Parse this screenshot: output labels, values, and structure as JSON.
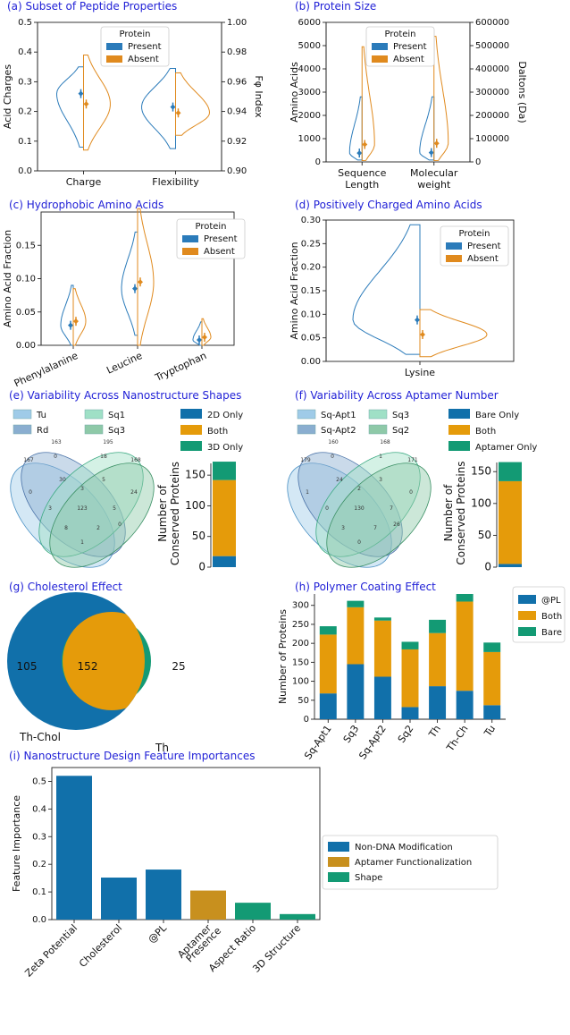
{
  "colors": {
    "present": "#2b7bba",
    "absent": "#e08a1e",
    "blue": "#1170aa",
    "orange": "#e59b0a",
    "green": "#139a74",
    "title": "#1f1fd6",
    "aptamer": "#c8901e"
  },
  "chart_data": [
    {
      "id": "a",
      "type": "violin",
      "title": "(a) Subset of Peptide Properties",
      "ylabel": "Acid Charges",
      "y2label": "Fφ Index",
      "categories": [
        "Charge",
        "Flexibility"
      ],
      "ylim": [
        0.0,
        0.5
      ],
      "yticks": [
        "0.0",
        "0.1",
        "0.2",
        "0.3",
        "0.4",
        "0.5"
      ],
      "y2lim": [
        0.9,
        1.0
      ],
      "y2ticks": [
        "0.90",
        "0.92",
        "0.94",
        "0.96",
        "0.98",
        "1.00"
      ],
      "legend": {
        "title": "Protein",
        "entries": [
          "Present",
          "Absent"
        ]
      },
      "series": [
        {
          "name": "Present",
          "category": "Charge",
          "axis": "left",
          "min": 0.08,
          "max": 0.35,
          "mean": 0.26
        },
        {
          "name": "Absent",
          "category": "Charge",
          "axis": "left",
          "min": 0.07,
          "max": 0.39,
          "mean": 0.225
        },
        {
          "name": "Present",
          "category": "Flexibility",
          "axis": "right",
          "min": 0.915,
          "max": 0.969,
          "mean": 0.943
        },
        {
          "name": "Absent",
          "category": "Flexibility",
          "axis": "right",
          "min": 0.924,
          "max": 0.966,
          "mean": 0.939
        }
      ]
    },
    {
      "id": "b",
      "type": "violin",
      "title": "(b) Protein Size",
      "ylabel": "Amino Acids",
      "y2label": "Daltons (Da)",
      "categories": [
        "Sequence Length",
        "Molecular weight"
      ],
      "category_lines": [
        [
          "Sequence",
          "Length"
        ],
        [
          "Molecular",
          "weight"
        ]
      ],
      "ylim": [
        0,
        6000
      ],
      "yticks": [
        "0",
        "1000",
        "2000",
        "3000",
        "4000",
        "5000",
        "6000"
      ],
      "y2lim": [
        0,
        600000
      ],
      "y2ticks": [
        "0",
        "100000",
        "200000",
        "300000",
        "400000",
        "500000",
        "600000"
      ],
      "legend": {
        "title": "Protein",
        "entries": [
          "Present",
          "Absent"
        ]
      },
      "series": [
        {
          "name": "Present",
          "category": "Sequence Length",
          "min": 80,
          "max": 2800,
          "mean": 380
        },
        {
          "name": "Absent",
          "category": "Sequence Length",
          "min": 60,
          "max": 4950,
          "mean": 750
        },
        {
          "name": "Present",
          "category": "Molecular weight",
          "min": 80,
          "max": 2800,
          "mean": 400
        },
        {
          "name": "Absent",
          "category": "Molecular weight",
          "min": 60,
          "max": 5400,
          "mean": 800
        }
      ]
    },
    {
      "id": "c",
      "type": "violin",
      "title": "(c) Hydrophobic Amino Acids",
      "ylabel": "Amino Acid Fraction",
      "categories": [
        "Phenylalanine",
        "Leucine",
        "Tryptophan"
      ],
      "ylim": [
        0.0,
        0.2
      ],
      "yticks": [
        "0.00",
        "0.05",
        "0.10",
        "0.15"
      ],
      "legend": {
        "title": "Protein",
        "entries": [
          "Present",
          "Absent"
        ]
      },
      "series": [
        {
          "name": "Present",
          "category": "Phenylalanine",
          "min": 0.0,
          "max": 0.09,
          "mean": 0.03
        },
        {
          "name": "Absent",
          "category": "Phenylalanine",
          "min": 0.0,
          "max": 0.085,
          "mean": 0.036
        },
        {
          "name": "Present",
          "category": "Leucine",
          "min": 0.015,
          "max": 0.17,
          "mean": 0.085
        },
        {
          "name": "Absent",
          "category": "Leucine",
          "min": 0.0,
          "max": 0.205,
          "mean": 0.095
        },
        {
          "name": "Present",
          "category": "Tryptophan",
          "min": 0.0,
          "max": 0.035,
          "mean": 0.008
        },
        {
          "name": "Absent",
          "category": "Tryptophan",
          "min": 0.0,
          "max": 0.04,
          "mean": 0.012
        }
      ]
    },
    {
      "id": "d",
      "type": "violin",
      "title": "(d) Positively Charged Amino Acids",
      "ylabel": "Amino Acid Fraction",
      "categories": [
        "Lysine"
      ],
      "ylim": [
        0.0,
        0.3
      ],
      "yticks": [
        "0.00",
        "0.05",
        "0.10",
        "0.15",
        "0.20",
        "0.25",
        "0.30"
      ],
      "legend": {
        "title": "Protein",
        "entries": [
          "Present",
          "Absent"
        ]
      },
      "series": [
        {
          "name": "Present",
          "category": "Lysine",
          "min": 0.015,
          "max": 0.29,
          "mean": 0.088
        },
        {
          "name": "Absent",
          "category": "Lysine",
          "min": 0.01,
          "max": 0.11,
          "mean": 0.057
        }
      ]
    },
    {
      "id": "e",
      "type": "venn4+stacked-bar",
      "title": "(e) Variability Across Nanostructure Shapes",
      "sets": [
        "Tu",
        "Rd",
        "Sq1",
        "Sq3"
      ],
      "set_totals": [
        "167",
        "163",
        "195",
        "168"
      ],
      "region_counts": [
        "0",
        "30",
        "3",
        "18",
        "5",
        "24",
        "0",
        "3",
        "123",
        "5",
        "0",
        "8",
        "2",
        "1"
      ],
      "bar_legend": [
        "2D Only",
        "Both",
        "3D Only"
      ],
      "ylabel_lines": [
        "Number of",
        "Conserved Proteins"
      ],
      "ylim": [
        0,
        175
      ],
      "yticks": [
        "0",
        "50",
        "100",
        "150"
      ],
      "bar_values": [
        18,
        124,
        30
      ]
    },
    {
      "id": "f",
      "type": "venn4+stacked-bar",
      "title": "(f) Variability Across Aptamer Number",
      "sets": [
        "Sq-Apt1",
        "Sq-Apt2",
        "Sq3",
        "Sq2"
      ],
      "set_totals": [
        "179",
        "160",
        "168",
        "171"
      ],
      "region_counts": [
        "0",
        "24",
        "2",
        "1",
        "3",
        "0",
        "1",
        "0",
        "130",
        "7",
        "26",
        "3",
        "7",
        "0"
      ],
      "bar_legend": [
        "Bare Only",
        "Both",
        "Aptamer Only"
      ],
      "ylabel_lines": [
        "Number of",
        "Conserved Proteins"
      ],
      "ylim": [
        0,
        170
      ],
      "yticks": [
        "0",
        "50",
        "100",
        "150"
      ],
      "bar_values": [
        5,
        130,
        30
      ]
    },
    {
      "id": "g",
      "type": "venn2",
      "title": "(g) Cholesterol Effect",
      "sets": [
        "Th-Chol",
        "Th"
      ],
      "counts": [
        "105",
        "152",
        "25"
      ]
    },
    {
      "id": "h",
      "type": "stacked-bar",
      "title": "(h) Polymer Coating Effect",
      "ylabel": "Number of Proteins",
      "categories": [
        "Sq-Apt1",
        "Sq3",
        "Sq-Apt2",
        "Sq2",
        "Th",
        "Th-Ch",
        "Tu"
      ],
      "ylim": [
        0,
        330
      ],
      "yticks": [
        "0",
        "50",
        "100",
        "150",
        "200",
        "250",
        "300"
      ],
      "legend": [
        "@PL",
        "Both",
        "Bare"
      ],
      "series": [
        {
          "name": "@PL",
          "values": [
            68,
            145,
            112,
            32,
            87,
            75,
            37
          ]
        },
        {
          "name": "Both",
          "values": [
            155,
            150,
            148,
            152,
            140,
            235,
            140
          ]
        },
        {
          "name": "Bare",
          "values": [
            22,
            17,
            8,
            20,
            35,
            20,
            25
          ]
        }
      ]
    },
    {
      "id": "i",
      "type": "bar",
      "title": "(i) Nanostructure Design Feature Importances",
      "ylabel": "Feature Importance",
      "categories": [
        "Zeta Potential",
        "Cholesterol",
        "@PL",
        "Aptamer Presence",
        "Aspect Ratio",
        "3D Structure"
      ],
      "category_lines": [
        [
          "Zeta Potential"
        ],
        [
          "Cholesterol"
        ],
        [
          "@PL"
        ],
        [
          "Aptamer",
          "Presence"
        ],
        [
          "Aspect Ratio"
        ],
        [
          "3D Structure"
        ]
      ],
      "values": [
        0.52,
        0.152,
        0.181,
        0.105,
        0.061,
        0.02
      ],
      "groups": [
        "Non-DNA Modification",
        "Non-DNA Modification",
        "Non-DNA Modification",
        "Aptamer Functionalization",
        "Shape",
        "Shape"
      ],
      "ylim": [
        0,
        0.55
      ],
      "yticks": [
        "0.0",
        "0.1",
        "0.2",
        "0.3",
        "0.4",
        "0.5"
      ],
      "legend": [
        "Non-DNA Modification",
        "Aptamer Functionalization",
        "Shape"
      ]
    }
  ]
}
